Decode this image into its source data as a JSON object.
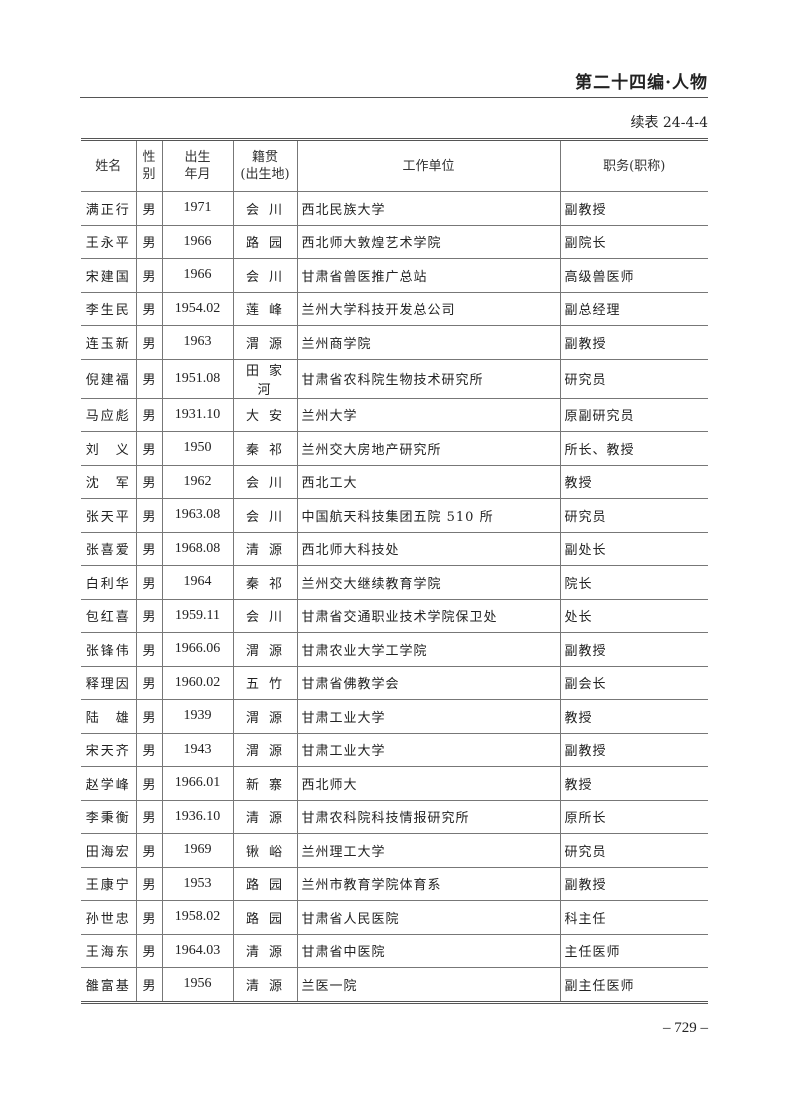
{
  "running_head": "第二十四编·人物",
  "table_caption": "续表 24-4-4",
  "columns": {
    "name": "姓名",
    "sex_1": "性",
    "sex_2": "别",
    "birth_1": "出生",
    "birth_2": "年月",
    "origin_1": "籍贯",
    "origin_2": "(出生地)",
    "unit": "工作单位",
    "title": "职务(职称)"
  },
  "rows": [
    [
      "满正行",
      "男",
      "1971",
      "会川",
      "西北民族大学",
      "副教授"
    ],
    [
      "王永平",
      "男",
      "1966",
      "路园",
      "西北师大敦煌艺术学院",
      "副院长"
    ],
    [
      "宋建国",
      "男",
      "1966",
      "会川",
      "甘肃省兽医推广总站",
      "高级兽医师"
    ],
    [
      "李生民",
      "男",
      "1954.02",
      "莲峰",
      "兰州大学科技开发总公司",
      "副总经理"
    ],
    [
      "连玉新",
      "男",
      "1963",
      "渭源",
      "兰州商学院",
      "副教授"
    ],
    [
      "倪建福",
      "男",
      "1951.08",
      "田家河",
      "甘肃省农科院生物技术研究所",
      "研究员"
    ],
    [
      "马应彪",
      "男",
      "1931.10",
      "大安",
      "兰州大学",
      "原副研究员"
    ],
    [
      "刘　义",
      "男",
      "1950",
      "秦祁",
      "兰州交大房地产研究所",
      "所长、教授"
    ],
    [
      "沈　军",
      "男",
      "1962",
      "会川",
      "西北工大",
      "教授"
    ],
    [
      "张天平",
      "男",
      "1963.08",
      "会川",
      "中国航天科技集团五院 510 所",
      "研究员"
    ],
    [
      "张喜爱",
      "男",
      "1968.08",
      "清源",
      "西北师大科技处",
      "副处长"
    ],
    [
      "白利华",
      "男",
      "1964",
      "秦祁",
      "兰州交大继续教育学院",
      "院长"
    ],
    [
      "包红喜",
      "男",
      "1959.11",
      "会川",
      "甘肃省交通职业技术学院保卫处",
      "处长"
    ],
    [
      "张锋伟",
      "男",
      "1966.06",
      "渭源",
      "甘肃农业大学工学院",
      "副教授"
    ],
    [
      "释理因",
      "男",
      "1960.02",
      "五竹",
      "甘肃省佛教学会",
      "副会长"
    ],
    [
      "陆　雄",
      "男",
      "1939",
      "渭源",
      "甘肃工业大学",
      "教授"
    ],
    [
      "宋天齐",
      "男",
      "1943",
      "渭源",
      "甘肃工业大学",
      "副教授"
    ],
    [
      "赵学峰",
      "男",
      "1966.01",
      "新寨",
      "西北师大",
      "教授"
    ],
    [
      "李秉衡",
      "男",
      "1936.10",
      "清源",
      "甘肃农科院科技情报研究所",
      "原所长"
    ],
    [
      "田海宏",
      "男",
      "1969",
      "锹峪",
      "兰州理工大学",
      "研究员"
    ],
    [
      "王康宁",
      "男",
      "1953",
      "路园",
      "兰州市教育学院体育系",
      "副教授"
    ],
    [
      "孙世忠",
      "男",
      "1958.02",
      "路园",
      "甘肃省人民医院",
      "科主任"
    ],
    [
      "王海东",
      "男",
      "1964.03",
      "清源",
      "甘肃省中医院",
      "主任医师"
    ],
    [
      "雒富基",
      "男",
      "1956",
      "清源",
      "兰医一院",
      "副主任医师"
    ]
  ],
  "page_number": "– 729 –"
}
